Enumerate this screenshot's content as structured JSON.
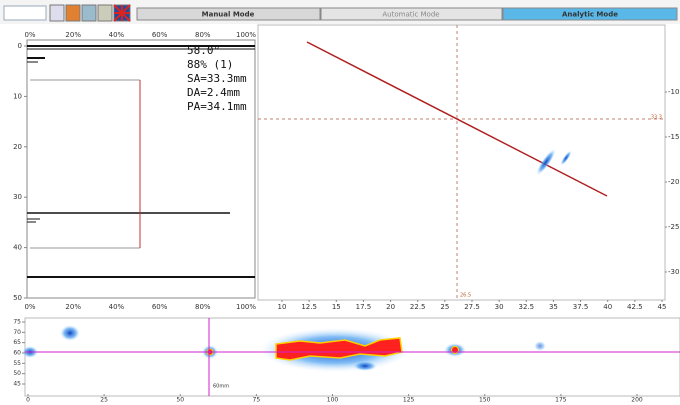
{
  "toolbar": {
    "tabs": [
      "Manual Mode",
      "Automatic Mode",
      "Analytic Mode"
    ]
  },
  "ascan": {
    "x_ticks": [
      "0%",
      "20%",
      "40%",
      "60%",
      "80%",
      "100%"
    ],
    "y_ticks": [
      0,
      10,
      20,
      30,
      40,
      50
    ],
    "readouts": [
      "58.0°",
      "88% (1)",
      "SA=33.3mm",
      "DA=2.4mm",
      "PA=34.1mm"
    ]
  },
  "sector": {
    "x_ticks": [
      10,
      12.5,
      15,
      17.5,
      20,
      22.5,
      25,
      27.5,
      30,
      32.5,
      35,
      37.5,
      40,
      42.5,
      45
    ],
    "y_ticks": [
      -10,
      -15,
      -20,
      -25,
      -30
    ],
    "cursor_labels": [
      "33.3",
      "26.5"
    ]
  },
  "cscan": {
    "y_ticks": [
      75,
      70,
      65,
      60,
      55,
      50,
      45
    ],
    "x_ticks": [
      0,
      25,
      50,
      75,
      100,
      125,
      150,
      175,
      200
    ],
    "marker_label": "60mm"
  }
}
